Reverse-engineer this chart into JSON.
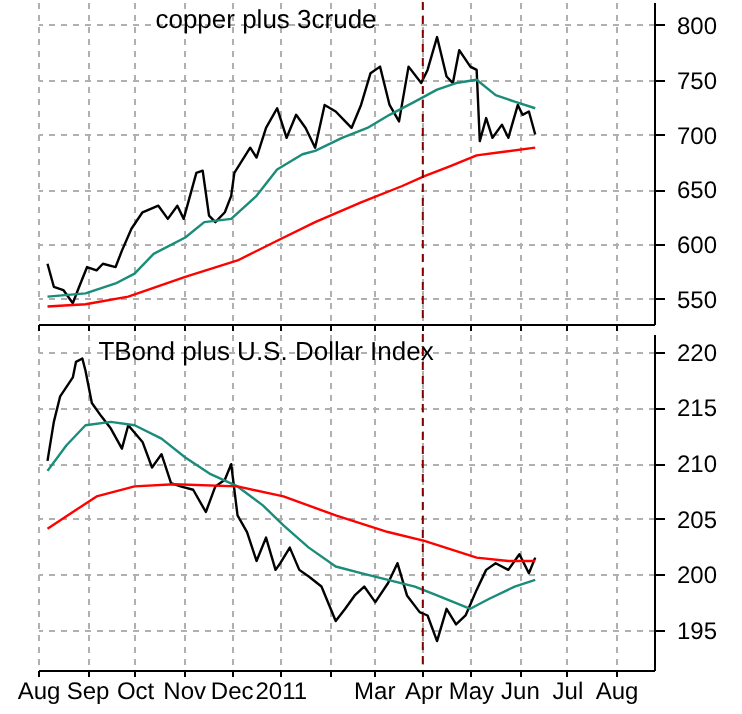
{
  "chart_data": [
    {
      "type": "line",
      "title": "copper plus 3crude",
      "xlim": [
        "2010-08-01",
        "2011-08-25"
      ],
      "ylim": [
        527,
        821
      ],
      "yticks": [
        550,
        600,
        650,
        700,
        750,
        800
      ],
      "xticks": [
        {
          "value": "2010-08-01",
          "label": null
        },
        {
          "value": "2010-09-01",
          "label": null
        },
        {
          "value": "2010-10-01",
          "label": null
        },
        {
          "value": "2010-11-01",
          "label": null
        },
        {
          "value": "2010-12-01",
          "label": null
        },
        {
          "value": "2011-01-01",
          "label": null
        },
        {
          "value": "2011-02-01",
          "label": null
        },
        {
          "value": "2011-03-01",
          "label": null
        },
        {
          "value": "2011-04-01",
          "label": null
        },
        {
          "value": "2011-05-01",
          "label": null
        },
        {
          "value": "2011-06-01",
          "label": null
        },
        {
          "value": "2011-07-01",
          "label": null
        },
        {
          "value": "2011-08-01",
          "label": null
        }
      ],
      "tick_labels": "y",
      "grid": true,
      "line_style": "solid",
      "marker": "none",
      "ref_lines": [
        {
          "axis": "x",
          "value": "2011-04-01",
          "color": "#800000",
          "line_style": "dashed"
        }
      ],
      "series": [
        {
          "color": "#000000",
          "x": [
            "2010-08-07",
            "2010-08-11",
            "2010-08-17",
            "2010-08-23",
            "2010-08-27",
            "2010-09-01",
            "2010-09-07",
            "2010-09-11",
            "2010-09-19",
            "2010-09-23",
            "2010-09-29",
            "2010-10-06",
            "2010-10-16",
            "2010-10-22",
            "2010-10-28",
            "2010-11-01",
            "2010-11-09",
            "2010-11-13",
            "2010-11-17",
            "2010-11-21",
            "2010-11-27",
            "2010-12-01",
            "2010-12-03",
            "2010-12-13",
            "2010-12-17",
            "2010-12-23",
            "2010-12-30",
            "2011-01-05",
            "2011-01-11",
            "2011-01-17",
            "2011-01-23",
            "2011-01-29",
            "2011-02-05",
            "2011-02-11",
            "2011-02-15",
            "2011-02-21",
            "2011-02-27",
            "2011-03-05",
            "2011-03-11",
            "2011-03-17",
            "2011-03-23",
            "2011-03-31",
            "2011-04-04",
            "2011-04-10",
            "2011-04-16",
            "2011-04-20",
            "2011-04-24",
            "2011-05-01",
            "2011-05-05",
            "2011-05-07",
            "2011-05-11",
            "2011-05-15",
            "2011-05-21",
            "2011-05-25",
            "2011-05-31",
            "2011-06-03",
            "2011-06-07",
            "2011-06-11"
          ],
          "values": [
            582,
            561,
            558,
            546,
            561,
            579,
            576,
            582,
            579,
            594,
            614,
            629,
            635,
            623,
            635,
            623,
            665,
            667,
            626,
            620,
            629,
            644,
            665,
            688,
            679,
            706,
            724,
            697,
            718,
            706,
            688,
            727,
            721,
            712,
            706,
            727,
            756,
            762,
            727,
            712,
            762,
            747,
            759,
            789,
            753,
            747,
            777,
            762,
            759,
            694,
            715,
            697,
            709,
            697,
            727,
            718,
            721,
            700
          ]
        },
        {
          "color": "#1a8c7a",
          "x": [
            "2010-08-07",
            "2010-08-31",
            "2010-09-19",
            "2010-10-01",
            "2010-10-13",
            "2010-11-02",
            "2010-11-14",
            "2010-12-01",
            "2010-12-17",
            "2010-12-30",
            "2011-01-15",
            "2011-01-23",
            "2011-02-09",
            "2011-02-25",
            "2011-03-11",
            "2011-03-27",
            "2011-04-10",
            "2011-04-22",
            "2011-05-05",
            "2011-05-17",
            "2011-05-29",
            "2011-06-11"
          ],
          "values": [
            552,
            555,
            564,
            573,
            591,
            606,
            620,
            623,
            644,
            668,
            682,
            685,
            697,
            706,
            718,
            730,
            741,
            747,
            750,
            736,
            730,
            724
          ]
        },
        {
          "color": "#ff0000",
          "x": [
            "2010-08-07",
            "2010-08-31",
            "2010-09-27",
            "2010-11-02",
            "2010-12-05",
            "2010-12-30",
            "2011-01-23",
            "2011-02-21",
            "2011-03-19",
            "2011-04-02",
            "2011-04-18",
            "2011-05-05",
            "2011-05-21",
            "2011-06-11"
          ],
          "values": [
            543,
            545,
            552,
            570,
            585,
            603,
            620,
            638,
            653,
            662,
            671,
            681,
            684,
            688
          ]
        }
      ]
    },
    {
      "type": "line",
      "title": "TBond plus U.S. Dollar Index",
      "xlim": [
        "2010-08-01",
        "2011-08-25"
      ],
      "ylim": [
        191.4,
        221.6
      ],
      "yticks": [
        195,
        200,
        205,
        210,
        215,
        220
      ],
      "xticks": [
        {
          "value": "2010-08-01",
          "label": "Aug"
        },
        {
          "value": "2010-09-01",
          "label": "Sep"
        },
        {
          "value": "2010-10-01",
          "label": "Oct"
        },
        {
          "value": "2010-11-01",
          "label": "Nov"
        },
        {
          "value": "2010-12-01",
          "label": "Dec"
        },
        {
          "value": "2011-01-01",
          "label": "2011"
        },
        {
          "value": "2011-02-01",
          "label": null
        },
        {
          "value": "2011-03-01",
          "label": "Mar"
        },
        {
          "value": "2011-04-01",
          "label": "Apr"
        },
        {
          "value": "2011-05-01",
          "label": "May"
        },
        {
          "value": "2011-06-01",
          "label": "Jun"
        },
        {
          "value": "2011-07-01",
          "label": "Jul"
        },
        {
          "value": "2011-08-01",
          "label": "Aug"
        }
      ],
      "grid": true,
      "line_style": "solid",
      "marker": "none",
      "ref_lines": [
        {
          "axis": "x",
          "value": "2011-04-01",
          "color": "#800000",
          "line_style": "dashed"
        }
      ],
      "series": [
        {
          "color": "#000000",
          "x": [
            "2010-08-07",
            "2010-08-11",
            "2010-08-15",
            "2010-08-23",
            "2010-08-25",
            "2010-08-29",
            "2010-08-31",
            "2010-09-04",
            "2010-09-10",
            "2010-09-16",
            "2010-09-23",
            "2010-09-27",
            "2010-10-06",
            "2010-10-12",
            "2010-10-18",
            "2010-10-24",
            "2010-10-30",
            "2010-11-07",
            "2010-11-15",
            "2010-11-21",
            "2010-11-27",
            "2010-12-01",
            "2010-12-05",
            "2010-12-11",
            "2010-12-17",
            "2010-12-23",
            "2010-12-29",
            "2011-01-01",
            "2011-01-07",
            "2011-01-13",
            "2011-01-19",
            "2011-01-27",
            "2011-02-05",
            "2011-02-11",
            "2011-02-17",
            "2011-02-23",
            "2011-03-02",
            "2011-03-10",
            "2011-03-16",
            "2011-03-22",
            "2011-03-30",
            "2011-04-04",
            "2011-04-10",
            "2011-04-16",
            "2011-04-22",
            "2011-04-28",
            "2011-05-05",
            "2011-05-11",
            "2011-05-17",
            "2011-05-25",
            "2011-06-01",
            "2011-06-07",
            "2011-06-11"
          ],
          "values": [
            210.2,
            213.7,
            216.0,
            217.7,
            219.1,
            219.4,
            218.3,
            215.4,
            214.2,
            213.1,
            211.3,
            213.4,
            211.9,
            209.6,
            210.8,
            208.2,
            207.9,
            207.6,
            205.6,
            207.9,
            208.5,
            209.9,
            205.3,
            203.8,
            201.2,
            203.3,
            200.4,
            201.0,
            202.4,
            200.4,
            199.8,
            198.9,
            195.8,
            196.9,
            198.1,
            198.9,
            197.5,
            199.2,
            201.0,
            198.1,
            196.6,
            196.3,
            194.0,
            196.9,
            195.5,
            196.3,
            198.6,
            200.4,
            201.0,
            200.4,
            201.8,
            200.1,
            201.5
          ]
        },
        {
          "color": "#1a8c7a",
          "x": [
            "2010-08-07",
            "2010-08-19",
            "2010-08-31",
            "2010-09-16",
            "2010-10-01",
            "2010-10-18",
            "2010-11-02",
            "2010-11-18",
            "2010-12-05",
            "2010-12-21",
            "2011-01-03",
            "2011-01-19",
            "2011-02-05",
            "2011-02-21",
            "2011-03-10",
            "2011-03-27",
            "2011-04-10",
            "2011-05-01",
            "2011-05-13",
            "2011-05-29",
            "2011-06-11"
          ],
          "values": [
            209.3,
            211.6,
            213.4,
            213.7,
            213.4,
            212.2,
            210.5,
            209.0,
            207.9,
            206.2,
            204.4,
            202.4,
            200.7,
            200.1,
            199.5,
            198.9,
            198.1,
            196.9,
            197.8,
            198.9,
            199.5
          ]
        },
        {
          "color": "#ff0000",
          "x": [
            "2010-08-07",
            "2010-08-23",
            "2010-09-07",
            "2010-10-01",
            "2010-10-26",
            "2010-12-05",
            "2011-01-03",
            "2011-02-05",
            "2011-03-10",
            "2011-04-02",
            "2011-05-05",
            "2011-05-25",
            "2011-06-11"
          ],
          "values": [
            204.1,
            205.6,
            207.0,
            207.9,
            208.1,
            207.9,
            207.0,
            205.3,
            203.8,
            203.0,
            201.5,
            201.2,
            201.2
          ]
        }
      ]
    }
  ]
}
